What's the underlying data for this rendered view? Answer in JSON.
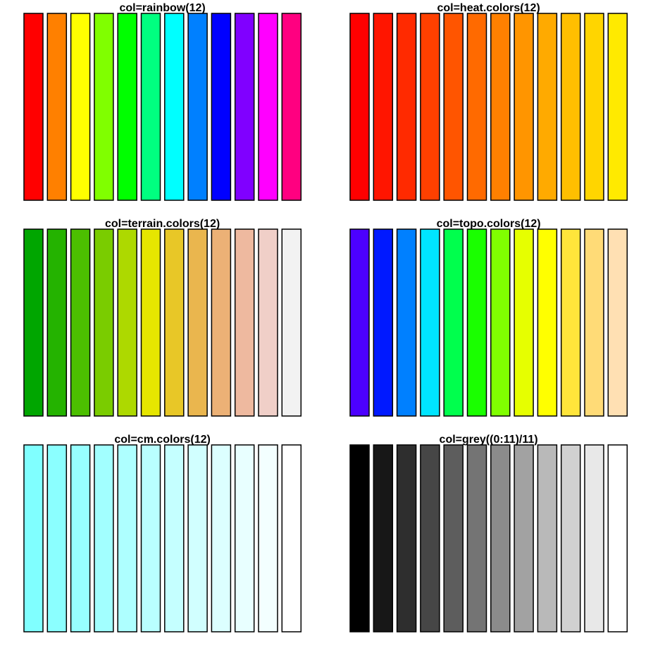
{
  "chart_data": [
    {
      "type": "bar",
      "title": "col=rainbow(12)",
      "values": [
        1,
        1,
        1,
        1,
        1,
        1,
        1,
        1,
        1,
        1,
        1,
        1
      ],
      "colors": [
        "#FF0000",
        "#FF8000",
        "#FFFF00",
        "#80FF00",
        "#00FF00",
        "#00FF80",
        "#00FFFF",
        "#0080FF",
        "#0000FF",
        "#8000FF",
        "#FF00FF",
        "#FF0080"
      ]
    },
    {
      "type": "bar",
      "title": "col=heat.colors(12)",
      "values": [
        1,
        1,
        1,
        1,
        1,
        1,
        1,
        1,
        1,
        1,
        1,
        1
      ],
      "colors": [
        "#FF0000",
        "#FF1500",
        "#FF2A00",
        "#FF4000",
        "#FF5500",
        "#FF6A00",
        "#FF8000",
        "#FF9500",
        "#FFAA00",
        "#FFBF00",
        "#FFD500",
        "#FFEA00"
      ]
    },
    {
      "type": "bar",
      "title": "col=terrain.colors(12)",
      "values": [
        1,
        1,
        1,
        1,
        1,
        1,
        1,
        1,
        1,
        1,
        1,
        1
      ],
      "colors": [
        "#00A600",
        "#24B300",
        "#4CBF00",
        "#7ACC00",
        "#ADD900",
        "#E6E600",
        "#E8C727",
        "#EAB64E",
        "#ECB176",
        "#EEB99F",
        "#F0CFC8",
        "#F2F2F2"
      ]
    },
    {
      "type": "bar",
      "title": "col=topo.colors(12)",
      "values": [
        1,
        1,
        1,
        1,
        1,
        1,
        1,
        1,
        1,
        1,
        1,
        1
      ],
      "colors": [
        "#4C00FF",
        "#0019FF",
        "#0080FF",
        "#00E5FF",
        "#00FF4D",
        "#1AFF00",
        "#80FF00",
        "#E6FF00",
        "#FFFF00",
        "#FFE53B",
        "#FFDB77",
        "#FFE0B3"
      ]
    },
    {
      "type": "bar",
      "title": "col=cm.colors(12)",
      "values": [
        1,
        1,
        1,
        1,
        1,
        1,
        1,
        1,
        1,
        1,
        1,
        1
      ],
      "colors": [
        "#80FFFF",
        "#8BFFFF",
        "#97FFFF",
        "#A2FFFF",
        "#AEFFFF",
        "#B9FFFF",
        "#C5FFFF",
        "#D1FFFF",
        "#DCFFFF",
        "#E8FFFF",
        "#F3FFFF",
        "#FFFFFF"
      ]
    },
    {
      "type": "bar",
      "title": "col=grey((0:11)/11)",
      "values": [
        1,
        1,
        1,
        1,
        1,
        1,
        1,
        1,
        1,
        1,
        1,
        1
      ],
      "colors": [
        "#000000",
        "#171717",
        "#2E2E2E",
        "#464646",
        "#5D5D5D",
        "#747474",
        "#8B8B8B",
        "#A2A2A2",
        "#B9B9B9",
        "#D1D1D1",
        "#E8E8E8",
        "#FFFFFF"
      ]
    }
  ]
}
